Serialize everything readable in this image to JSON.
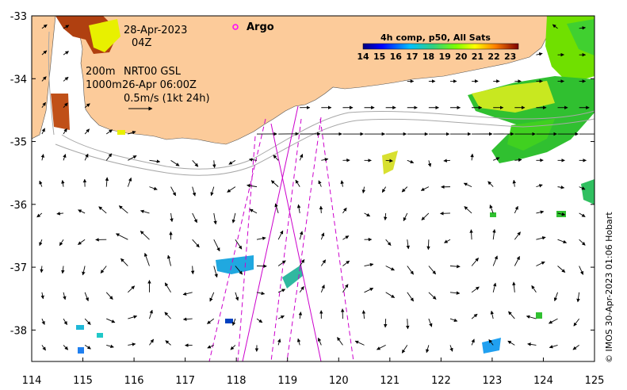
{
  "map": {
    "date": "28-Apr-2023",
    "hour": "04Z",
    "argo_label": "Argo",
    "line_200m": "200m",
    "line_nrt": "NRT00 GSL",
    "line_1000m": "1000m",
    "line_time": "26-Apr 06:00Z",
    "scale_label": "0.5m/s (1kt 24h)",
    "credit": "© IMOS 30-Apr-2023 01:06 Hobart",
    "x_ticks": [
      "114",
      "115",
      "116",
      "117",
      "118",
      "119",
      "120",
      "121",
      "122",
      "123",
      "124",
      "125"
    ],
    "y_ticks": [
      "-33",
      "-34",
      "-35",
      "-36",
      "-37",
      "-38"
    ],
    "x_range": [
      114,
      125
    ],
    "y_range": [
      -38.5,
      -33
    ],
    "colors": {
      "land": "#fccb9a",
      "argo": "#ff00ff",
      "track": "#cc00cc",
      "contour": "#a8a8a8"
    }
  },
  "colorbar": {
    "title": "4h comp, p50, All Sats",
    "ticks": [
      "14",
      "15",
      "16",
      "17",
      "18",
      "19",
      "20",
      "21",
      "22",
      "23"
    ],
    "range": [
      14,
      23.5
    ]
  }
}
